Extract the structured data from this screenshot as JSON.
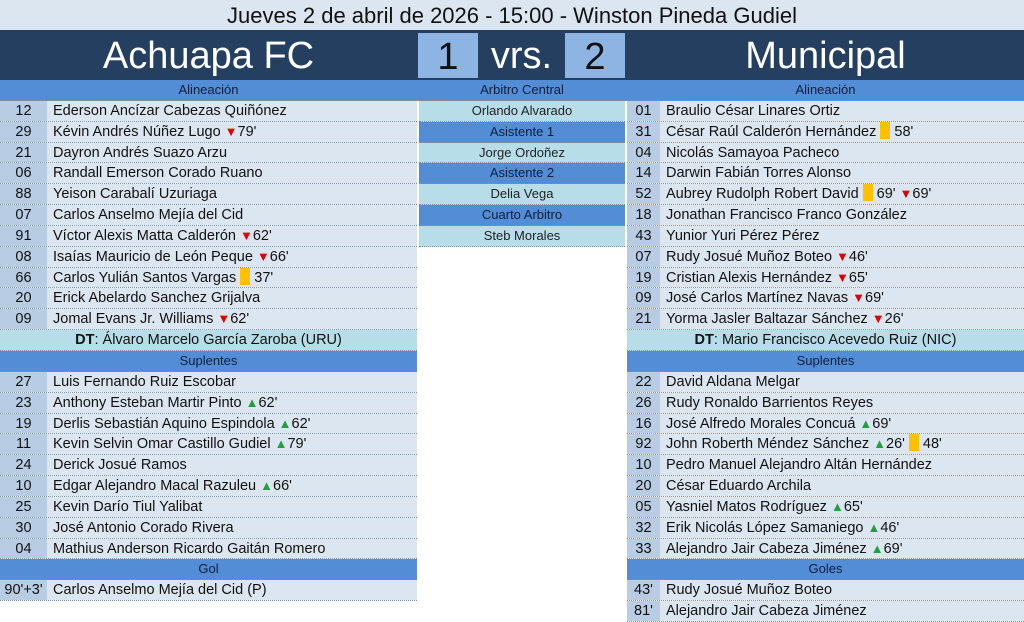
{
  "title": "Jueves 2 de abril de 2026 - 15:00 - Winston Pineda Gudiel",
  "header": {
    "home_team": "Achuapa FC",
    "home_score": "1",
    "vs": "vrs.",
    "away_score": "2",
    "away_team": "Municipal"
  },
  "colors": {
    "navy": "#243f60",
    "section": "#538dd5",
    "row": "#dce6f1",
    "number": "#b8cce4",
    "dt": "#b7dee8",
    "yellow_card": "#ffc000",
    "sub_out": "#e00000",
    "sub_in": "#22a040"
  },
  "officials": [
    {
      "role": "Arbitro Central",
      "name": "Orlando Alvarado"
    },
    {
      "role": "Asistente 1",
      "name": "Jorge Ordoñez"
    },
    {
      "role": "Asistente 2",
      "name": "Delia Vega"
    },
    {
      "role": "Cuarto Arbitro",
      "name": "Steb Morales"
    }
  ],
  "home": {
    "lineup_label": "Alineación",
    "lineup": [
      {
        "num": "12",
        "name": "Ederson Ancízar Cabezas Quiñónez",
        "events": []
      },
      {
        "num": "29",
        "name": "Kévin Andrés Núñez Lugo",
        "events": [
          {
            "type": "out",
            "minute": "79'"
          }
        ]
      },
      {
        "num": "21",
        "name": "Dayron Andrés Suazo Arzu",
        "events": []
      },
      {
        "num": "06",
        "name": "Randall Emerson Corado Ruano",
        "events": []
      },
      {
        "num": "88",
        "name": "Yeison Carabalí Uzuriaga",
        "events": []
      },
      {
        "num": "07",
        "name": "Carlos Anselmo Mejía del Cid",
        "events": []
      },
      {
        "num": "91",
        "name": "Víctor Alexis Matta Calderón",
        "events": [
          {
            "type": "out",
            "minute": "62'"
          }
        ]
      },
      {
        "num": "08",
        "name": "Isaías Mauricio de León Peque",
        "events": [
          {
            "type": "out",
            "minute": "66'"
          }
        ]
      },
      {
        "num": "66",
        "name": "Carlos Yulián Santos Vargas",
        "events": [
          {
            "type": "card",
            "minute": "37'"
          }
        ]
      },
      {
        "num": "20",
        "name": "Erick Abelardo Sanchez Grijalva",
        "events": []
      },
      {
        "num": "09",
        "name": "Jomal Evans Jr. Williams",
        "events": [
          {
            "type": "out",
            "minute": "62'"
          }
        ]
      }
    ],
    "dt_label": "DT",
    "dt": "Álvaro Marcelo García Zaroba (URU)",
    "subs_label": "Suplentes",
    "subs": [
      {
        "num": "27",
        "name": "Luis Fernando Ruiz Escobar",
        "events": []
      },
      {
        "num": "23",
        "name": "Anthony Esteban Martir Pinto",
        "events": [
          {
            "type": "in",
            "minute": "62'"
          }
        ]
      },
      {
        "num": "19",
        "name": "Derlis Sebastián Aquino Espindola",
        "events": [
          {
            "type": "in",
            "minute": "62'"
          }
        ]
      },
      {
        "num": "11",
        "name": "Kevin Selvin Omar Castillo Gudiel",
        "events": [
          {
            "type": "in",
            "minute": "79'"
          }
        ]
      },
      {
        "num": "24",
        "name": "Derick Josué Ramos",
        "events": []
      },
      {
        "num": "10",
        "name": "Edgar Alejandro Macal Razuleu",
        "events": [
          {
            "type": "in",
            "minute": "66'"
          }
        ]
      },
      {
        "num": "25",
        "name": "Kevin Darío Tiul Yalibat",
        "events": []
      },
      {
        "num": "30",
        "name": "José Antonio Corado Rivera",
        "events": []
      },
      {
        "num": "04",
        "name": "Mathius Anderson Ricardo Gaitán Romero",
        "events": []
      }
    ],
    "goals_label": "Gol",
    "goals": [
      {
        "num": "90'+3'",
        "name": "Carlos Anselmo Mejía del Cid (P)",
        "events": []
      }
    ]
  },
  "away": {
    "lineup_label": "Alineación",
    "lineup": [
      {
        "num": "01",
        "name": "Braulio César Linares Ortiz",
        "events": []
      },
      {
        "num": "31",
        "name": "César Raúl Calderón Hernández",
        "events": [
          {
            "type": "card",
            "minute": "58'"
          }
        ]
      },
      {
        "num": "04",
        "name": "Nicolás Samayoa Pacheco",
        "events": []
      },
      {
        "num": "14",
        "name": "Darwin Fabián Torres Alonso",
        "events": []
      },
      {
        "num": "52",
        "name": "Aubrey Rudolph Robert David",
        "events": [
          {
            "type": "card",
            "minute": "69'"
          },
          {
            "type": "out",
            "minute": "69'"
          }
        ]
      },
      {
        "num": "18",
        "name": "Jonathan Francisco Franco González",
        "events": []
      },
      {
        "num": "43",
        "name": "Yunior Yuri Pérez Pérez",
        "events": []
      },
      {
        "num": "07",
        "name": "Rudy Josué Muñoz Boteo",
        "events": [
          {
            "type": "out",
            "minute": "46'"
          }
        ]
      },
      {
        "num": "19",
        "name": "Cristian Alexis Hernández",
        "events": [
          {
            "type": "out",
            "minute": "65'"
          }
        ]
      },
      {
        "num": "09",
        "name": "José Carlos Martínez Navas",
        "events": [
          {
            "type": "out",
            "minute": "69'"
          }
        ]
      },
      {
        "num": "21",
        "name": "Yorma Jasler Baltazar Sánchez",
        "events": [
          {
            "type": "out",
            "minute": "26'"
          }
        ]
      }
    ],
    "dt_label": "DT",
    "dt": "Mario Francisco Acevedo Ruiz (NIC)",
    "subs_label": "Suplentes",
    "subs": [
      {
        "num": "22",
        "name": "David Aldana Melgar",
        "events": []
      },
      {
        "num": "26",
        "name": "Rudy Ronaldo Barrientos Reyes",
        "events": []
      },
      {
        "num": "16",
        "name": "José Alfredo Morales Concuá",
        "events": [
          {
            "type": "in",
            "minute": "69'"
          }
        ]
      },
      {
        "num": "92",
        "name": "John Roberth Méndez Sánchez",
        "events": [
          {
            "type": "in",
            "minute": "26'"
          },
          {
            "type": "card",
            "minute": "48'"
          }
        ]
      },
      {
        "num": "10",
        "name": "Pedro Manuel Alejandro Altán Hernández",
        "events": []
      },
      {
        "num": "20",
        "name": "César Eduardo Archila",
        "events": []
      },
      {
        "num": "05",
        "name": "Yasniel Matos Rodríguez",
        "events": [
          {
            "type": "in",
            "minute": "65'"
          }
        ]
      },
      {
        "num": "32",
        "name": "Erik Nicolás López Samaniego",
        "events": [
          {
            "type": "in",
            "minute": "46'"
          }
        ]
      },
      {
        "num": "33",
        "name": "Alejandro Jair Cabeza Jiménez",
        "events": [
          {
            "type": "in",
            "minute": "69'"
          }
        ]
      }
    ],
    "goals_label": "Goles",
    "goals": [
      {
        "num": "43'",
        "name": "Rudy Josué Muñoz Boteo",
        "events": []
      },
      {
        "num": "81'",
        "name": "Alejandro Jair Cabeza Jiménez",
        "events": []
      }
    ]
  }
}
